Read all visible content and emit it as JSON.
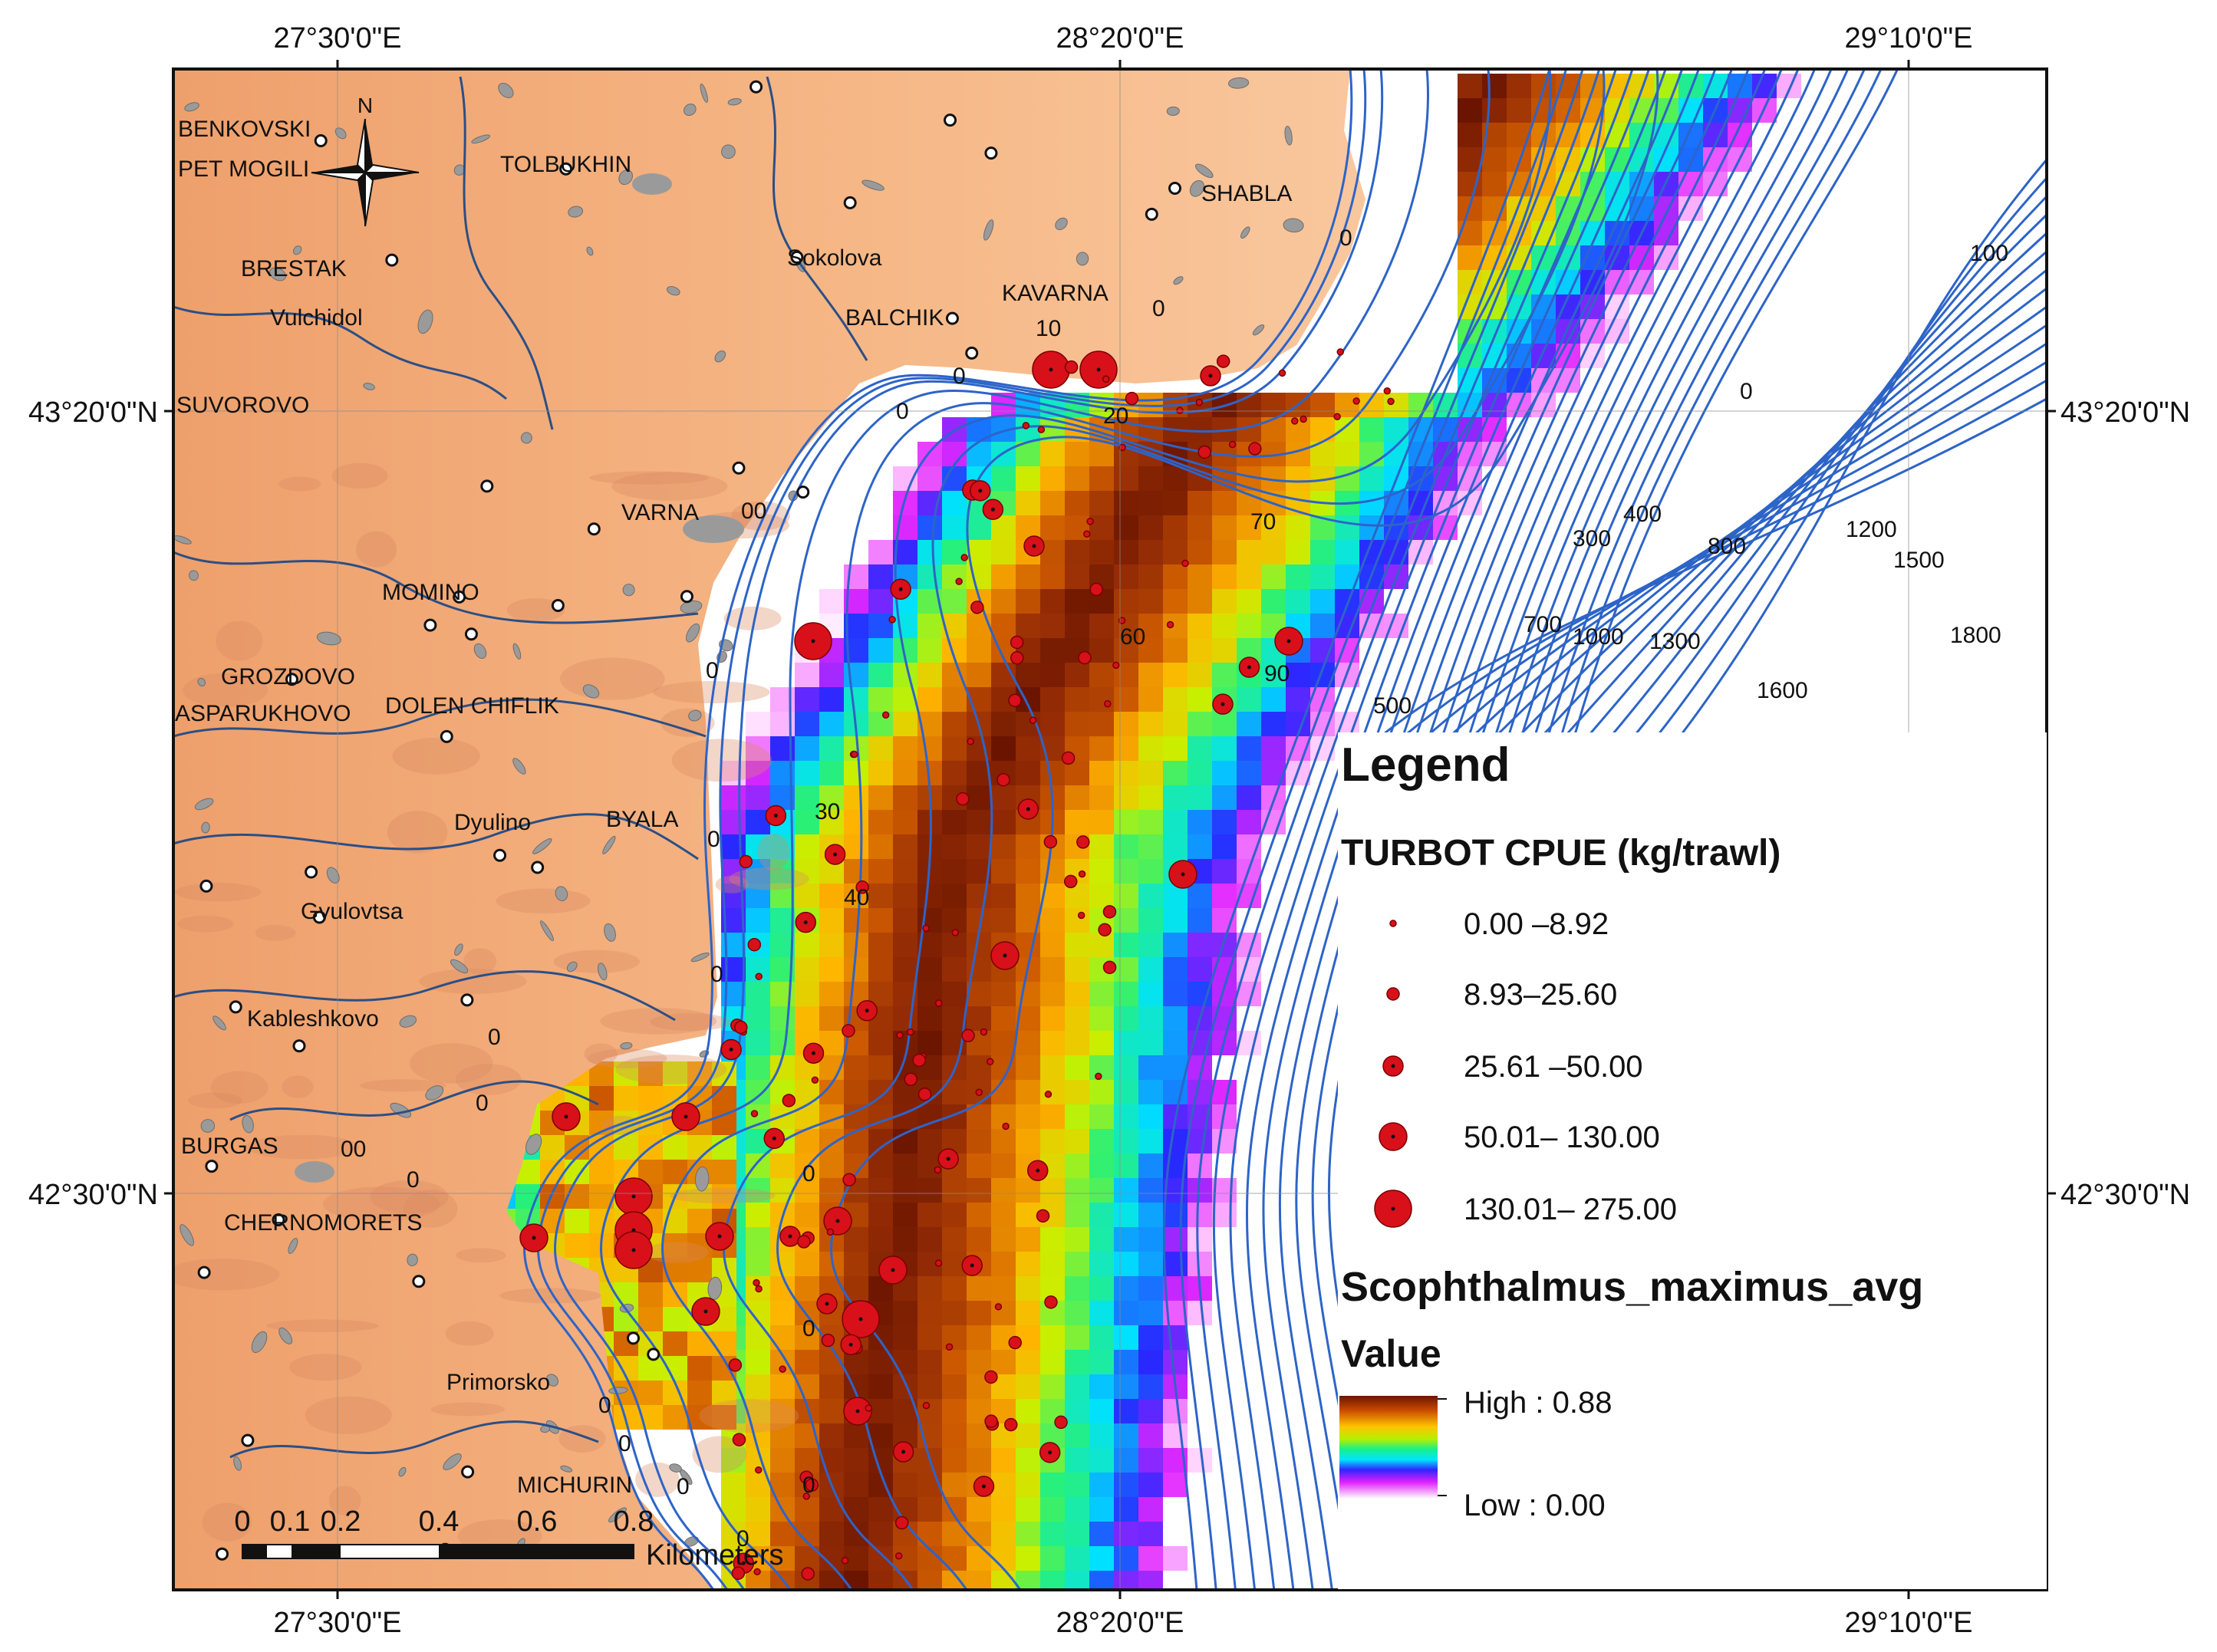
{
  "map": {
    "top_longitudes": [
      "27°30'0\"E",
      "28°20'0\"E",
      "29°10'0\"E"
    ],
    "bottom_longitudes": [
      "27°30'0\"E",
      "28°20'0\"E",
      "29°10'0\"E"
    ],
    "left_latitudes": [
      "43°20'0\"N",
      "42°30'0\"N"
    ],
    "right_latitudes": [
      "43°20'0\"N",
      "42°30'0\"N"
    ],
    "north_arrow_label": "N",
    "places": [
      "BENKOVSKI",
      "PET MOGILI",
      "TOLBUKHIN",
      "SHABLA",
      "BRESTAK",
      "Sokolova",
      "Vulchidol",
      "BALCHIK",
      "KAVARNA",
      "SUVOROVO",
      "VARNA",
      "MOMINO",
      "GROZDOVO",
      "ASPARUKHOVO",
      "DOLEN CHIFLIK",
      "Dyulino",
      "BYALA",
      "Gyulovtsa",
      "Kableshkovo",
      "BURGAS",
      "CHERNOMORETS",
      "Primorsko",
      "MICHURIN"
    ],
    "contour_labels": [
      "0",
      "10",
      "0",
      "20",
      "0",
      "00",
      "0",
      "70",
      "60",
      "90",
      "30",
      "40",
      "0",
      "0",
      "0",
      "0",
      "0",
      "0",
      "00",
      "0",
      "0",
      "0",
      "0",
      "0",
      "0",
      "0",
      "100",
      "0",
      "300",
      "400",
      "800",
      "1200",
      "1500",
      "700",
      "1000",
      "1300",
      "1800",
      "1600",
      "500"
    ],
    "scale_bar": {
      "ticks": [
        "0",
        "0.1",
        "0.2",
        "0.4",
        "0.6",
        "0.8"
      ],
      "units": "Kilometers"
    },
    "colors": {
      "land": "#f2a874",
      "land_high": "#d98a60",
      "lake": "#9a9a9a",
      "river": "#2b4f86",
      "contour": "#2d64c8",
      "point_fill": "#d8101a",
      "ramp_high": "#7a1a00",
      "ramp_low": "#ffffff"
    }
  },
  "legend": {
    "title": "Legend",
    "cpue_title": "TURBOT CPUE (kg/trawl)",
    "cpue_classes": [
      {
        "label": "0.00 –8.92"
      },
      {
        "label": "8.93–25.60"
      },
      {
        "label": "25.61 –50.00"
      },
      {
        "label": "50.01– 130.00"
      },
      {
        "label": "130.01– 275.00"
      }
    ],
    "raster_title": "Scophthalmus_maximus_avg",
    "value_title": "Value",
    "high_label": "High : 0.88",
    "low_label": "Low : 0.00"
  }
}
